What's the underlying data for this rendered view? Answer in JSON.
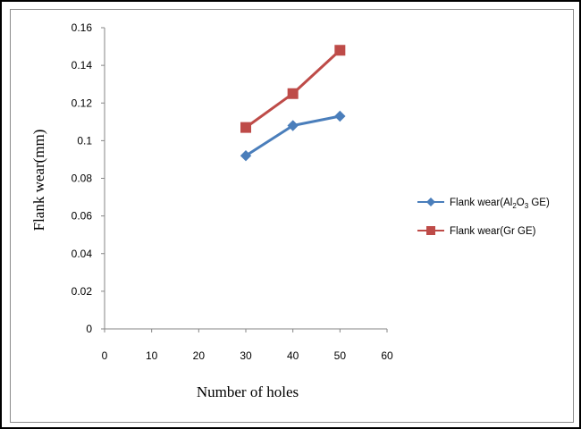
{
  "chart_data": {
    "type": "line",
    "title": "",
    "xlabel": "Number of holes",
    "ylabel": "Flank wear(mm)",
    "xlim": [
      0,
      60
    ],
    "ylim": [
      0,
      0.16
    ],
    "x_ticks": [
      "0",
      "10",
      "20",
      "30",
      "40",
      "50",
      "60"
    ],
    "y_ticks": [
      "0",
      "0.02",
      "0.04",
      "0.06",
      "0.08",
      "0.1",
      "0.12",
      "0.14",
      "0.16"
    ],
    "grid": false,
    "legend_position": "right",
    "series": [
      {
        "name": "Flank wear(Al2O3 GE)",
        "legend_main": "Flank wear(Al",
        "legend_sub1": "2",
        "legend_mid": "O",
        "legend_sub2": "3",
        "legend_end": " GE)",
        "marker": "diamond",
        "color": "#4a7ebb",
        "x": [
          30,
          40,
          50
        ],
        "y": [
          0.092,
          0.108,
          0.113
        ]
      },
      {
        "name": "Flank wear(Gr GE)",
        "marker": "square",
        "color": "#be4b48",
        "x": [
          30,
          40,
          50
        ],
        "y": [
          0.107,
          0.125,
          0.148
        ]
      }
    ]
  }
}
